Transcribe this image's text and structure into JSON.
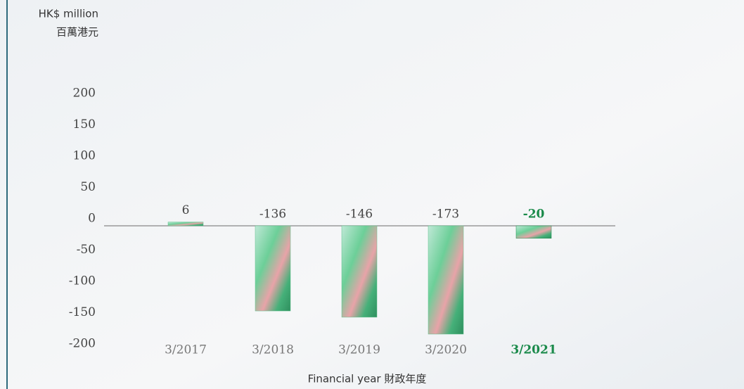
{
  "chart_data": {
    "type": "bar",
    "y_label": "HK$ million",
    "y_label_zh": "百萬港元",
    "x_label": "Financial year 財政年度",
    "categories": [
      "3/2017",
      "3/2018",
      "3/2019",
      "3/2020",
      "3/2021"
    ],
    "values": [
      6,
      -136,
      -146,
      -173,
      -20
    ],
    "color": "#5cc08a",
    "highlight_index": 4,
    "highlight_color": "#1a8a4a",
    "ylim": [
      -200,
      200
    ],
    "yticks": [
      -200,
      -150,
      -100,
      -50,
      0,
      50,
      100,
      150,
      200
    ]
  }
}
